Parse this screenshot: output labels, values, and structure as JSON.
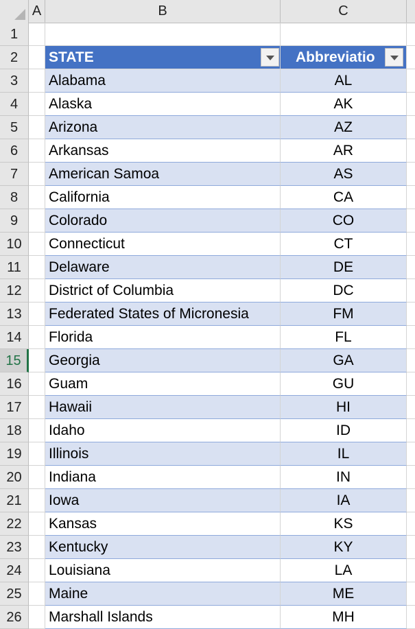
{
  "columns": [
    "A",
    "B",
    "C"
  ],
  "header": {
    "state": "STATE",
    "abbreviation": "Abbreviatio"
  },
  "row_numbers": [
    "1",
    "2",
    "3",
    "4",
    "5",
    "6",
    "7",
    "8",
    "9",
    "10",
    "11",
    "12",
    "13",
    "14",
    "15",
    "16",
    "17",
    "18",
    "19",
    "20",
    "21",
    "22",
    "23",
    "24",
    "25",
    "26"
  ],
  "active_row": "15",
  "rows": [
    {
      "state": "Alabama",
      "abbr": "AL"
    },
    {
      "state": "Alaska",
      "abbr": "AK"
    },
    {
      "state": "Arizona",
      "abbr": "AZ"
    },
    {
      "state": "Arkansas",
      "abbr": "AR"
    },
    {
      "state": "American Samoa",
      "abbr": "AS"
    },
    {
      "state": "California",
      "abbr": "CA"
    },
    {
      "state": "Colorado",
      "abbr": "CO"
    },
    {
      "state": "Connecticut",
      "abbr": "CT"
    },
    {
      "state": "Delaware",
      "abbr": "DE"
    },
    {
      "state": "District of Columbia",
      "abbr": "DC"
    },
    {
      "state": "Federated States of Micronesia",
      "abbr": "FM"
    },
    {
      "state": "Florida",
      "abbr": "FL"
    },
    {
      "state": "Georgia",
      "abbr": "GA"
    },
    {
      "state": "Guam",
      "abbr": "GU"
    },
    {
      "state": "Hawaii",
      "abbr": "HI"
    },
    {
      "state": "Idaho",
      "abbr": "ID"
    },
    {
      "state": "Illinois",
      "abbr": "IL"
    },
    {
      "state": "Indiana",
      "abbr": "IN"
    },
    {
      "state": "Iowa",
      "abbr": "IA"
    },
    {
      "state": "Kansas",
      "abbr": "KS"
    },
    {
      "state": "Kentucky",
      "abbr": "KY"
    },
    {
      "state": "Louisiana",
      "abbr": "LA"
    },
    {
      "state": "Maine",
      "abbr": "ME"
    },
    {
      "state": "Marshall Islands",
      "abbr": "MH"
    }
  ],
  "colors": {
    "header_fill": "#4472c4",
    "band_fill": "#d9e1f2",
    "active_row_accent": "#217346"
  }
}
